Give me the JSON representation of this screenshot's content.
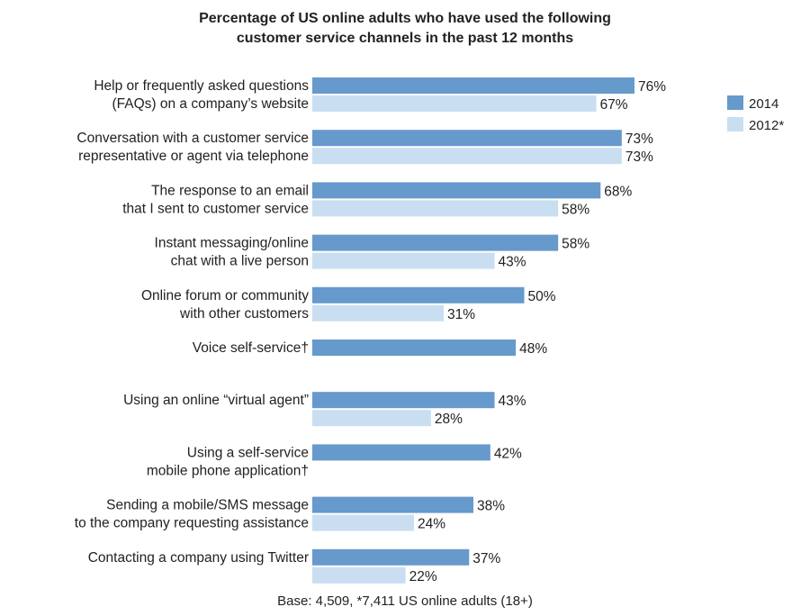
{
  "chart_data": {
    "type": "bar",
    "orientation": "horizontal",
    "title_lines": [
      "Percentage of US online adults who have used the following",
      "customer service channels in the past 12 months"
    ],
    "categories": [
      {
        "lines": [
          "Help or frequently asked questions",
          "(FAQs) on a company’s website"
        ]
      },
      {
        "lines": [
          "Conversation with a customer service",
          "representative or agent via telephone"
        ]
      },
      {
        "lines": [
          "The response to an email",
          "that I sent to customer service"
        ]
      },
      {
        "lines": [
          "Instant messaging/online",
          "chat with a live person"
        ]
      },
      {
        "lines": [
          "Online forum or community",
          "with other customers"
        ]
      },
      {
        "lines": [
          "Voice self-service†"
        ]
      },
      {
        "lines": [
          "Using an online “virtual agent”"
        ]
      },
      {
        "lines": [
          "Using a self-service",
          "mobile phone application†"
        ]
      },
      {
        "lines": [
          "Sending a mobile/SMS message",
          "to the company requesting assistance"
        ]
      },
      {
        "lines": [
          "Contacting a company using Twitter"
        ]
      }
    ],
    "series": [
      {
        "name": "2014",
        "color": "#6699cc",
        "values": [
          76,
          73,
          68,
          58,
          50,
          48,
          43,
          42,
          38,
          37
        ],
        "labels": [
          "76%",
          "73%",
          "68%",
          "58%",
          "50%",
          "48%",
          "43%",
          "42%",
          "38%",
          "37%"
        ]
      },
      {
        "name": "2012*",
        "color": "#c9def1",
        "values": [
          67,
          73,
          58,
          43,
          31,
          null,
          28,
          null,
          24,
          22
        ],
        "labels": [
          "67%",
          "73%",
          "58%",
          "43%",
          "31%",
          null,
          "28%",
          null,
          "24%",
          "22%"
        ]
      }
    ],
    "xlim": [
      0,
      100
    ],
    "legend_position": "right",
    "grid": false,
    "footnote": "Base: 4,509, *7,411 US online adults (18+)"
  }
}
